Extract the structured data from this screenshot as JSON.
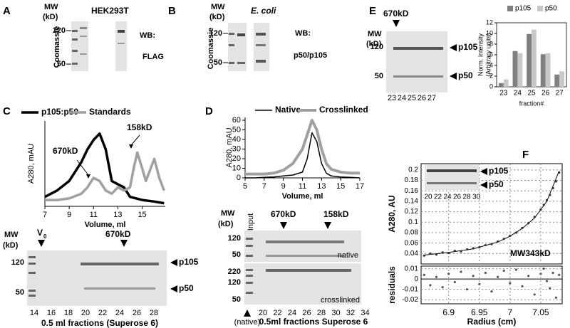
{
  "figure": {
    "A": {
      "label": "A",
      "mw": [
        "MW",
        "(kD)"
      ],
      "cell": "HEK293T",
      "stain": "Coomassie",
      "markers": [
        "120",
        "50"
      ],
      "wb": "WB:",
      "antibody": "FLAG"
    },
    "B": {
      "label": "B",
      "mw": [
        "MW",
        "(kD)"
      ],
      "cell": "E. coli",
      "stain": "Coomassie",
      "markers": [
        "120",
        "50"
      ],
      "wb": "WB:",
      "antibody": "p50/p105"
    },
    "C": {
      "label": "C",
      "gel": {
        "mw": [
          "MW",
          "(kD)"
        ],
        "markers": [
          "120",
          "50"
        ],
        "void": "V",
        "void_sub": "0",
        "size": "670kD",
        "bands": [
          "p105",
          "p50"
        ],
        "fractions": [
          "14",
          "16",
          "18",
          "20",
          "22",
          "24",
          "26",
          "28"
        ],
        "caption": "0.5 ml fractions (Superose 6)"
      }
    },
    "D": {
      "label": "D",
      "gel": {
        "mw": [
          "MW",
          "(kD)"
        ],
        "input": "Input",
        "sizes": [
          "670kD",
          "158kD"
        ],
        "native": {
          "markers": [
            "120",
            "50"
          ],
          "tag": "native"
        },
        "crosslinked": {
          "markers": [
            "220",
            "120",
            "50"
          ],
          "tag": "crosslinked"
        },
        "input_note": "(native)",
        "fractions": [
          "20",
          "22",
          "24",
          "26",
          "28",
          "30",
          "32",
          "34"
        ],
        "caption": "0.5ml fractions Superose 6"
      }
    },
    "E": {
      "label": "E",
      "gel": {
        "mw": [
          "MW",
          "(kD)"
        ],
        "size": "670kD",
        "markers": [
          "120",
          "50"
        ],
        "bands": [
          "p105",
          "p50"
        ],
        "lanes": [
          "23",
          "24",
          "25",
          "26",
          "27"
        ]
      }
    },
    "F": {
      "label": "F",
      "gel": {
        "bands": [
          "p105",
          "p50"
        ],
        "lanes": [
          "20",
          "22",
          "24",
          "26",
          "28",
          "30"
        ]
      }
    }
  },
  "chart_data": [
    {
      "type": "line",
      "ylabel": "A280, mAU",
      "xlabel": "Volume, ml",
      "xlim": [
        7,
        16.9
      ],
      "xticks": [
        7,
        9,
        11,
        13,
        15
      ],
      "ylim": [
        0,
        27
      ],
      "annotations": [
        "670kD",
        "158kD"
      ],
      "series": [
        {
          "name": "p105:p50",
          "color": "#000000",
          "x": [
            7,
            8,
            9,
            9.5,
            10,
            10.5,
            11,
            11.5,
            12,
            12.5,
            13,
            13.5,
            14,
            15,
            16,
            16.8
          ],
          "values": [
            3,
            5,
            8,
            11,
            14,
            18,
            21,
            23,
            18,
            8,
            7,
            6,
            3,
            2,
            1.5,
            1
          ]
        },
        {
          "name": "Standards",
          "color": "#a0a0a0",
          "x": [
            7,
            8,
            9,
            10,
            10.5,
            11,
            11.5,
            12,
            12.5,
            13,
            13.5,
            14,
            14.3,
            14.6,
            15,
            15.3,
            15.6,
            16,
            16.4,
            16.8
          ],
          "values": [
            2,
            2,
            2.5,
            4,
            6,
            9,
            8,
            5,
            4,
            6,
            5,
            6,
            12,
            17,
            12,
            8,
            11,
            15,
            9,
            5
          ]
        }
      ]
    },
    {
      "type": "line",
      "ylabel": "A280, mAU",
      "xlabel": "Volume, ml",
      "xlim": [
        5,
        17
      ],
      "xticks": [
        5,
        7,
        9,
        11,
        13,
        15,
        17
      ],
      "ylim": [
        0,
        63
      ],
      "yticks": [
        0,
        10,
        20,
        30,
        40,
        50,
        60
      ],
      "series": [
        {
          "name": "Native",
          "color": "#000000",
          "x": [
            5,
            6,
            7,
            8,
            9,
            10,
            11,
            11.5,
            12,
            12.5,
            13,
            13.5,
            14,
            15,
            16,
            17
          ],
          "values": [
            0,
            0,
            0.5,
            1,
            2,
            3,
            6,
            20,
            47,
            38,
            15,
            5,
            2,
            1,
            0.5,
            0
          ]
        },
        {
          "name": "Crosslinked",
          "color": "#a0a0a0",
          "x": [
            5,
            6,
            7,
            8,
            9,
            10,
            11,
            11.5,
            12,
            12.5,
            13,
            13.5,
            14,
            15,
            16,
            17
          ],
          "values": [
            4,
            4,
            4,
            5,
            8,
            15,
            30,
            45,
            60,
            50,
            30,
            15,
            9,
            6,
            5,
            5
          ]
        }
      ]
    },
    {
      "type": "bar",
      "ylabel": [
        "Norm. intensity",
        "(Arbitrary units)"
      ],
      "xlabel": "fraction#",
      "categories": [
        "23",
        "24",
        "25",
        "26",
        "27"
      ],
      "ylim": [
        0,
        12
      ],
      "yticks": [
        0,
        2,
        4,
        6,
        8,
        10,
        12
      ],
      "series": [
        {
          "name": "p105",
          "color": "#808080",
          "values": [
            0.7,
            6.7,
            9.9,
            6.1,
            2.3
          ]
        },
        {
          "name": "p50",
          "color": "#c8c8c8",
          "values": [
            1.4,
            6.3,
            10.7,
            6.3,
            2.9
          ]
        }
      ]
    },
    {
      "type": "scatter",
      "ylabel": "A280, AU",
      "xlabel": "Radius (cm)",
      "annotation": "MW343kD",
      "grid": true,
      "xlim": [
        6.855,
        7.085
      ],
      "xticks": [
        6.9,
        6.95,
        7,
        7.05
      ],
      "ylim": [
        0.02,
        0.212
      ],
      "yticks": [
        0.04,
        0.06,
        0.08,
        0.1,
        0.12,
        0.14,
        0.16,
        0.18,
        0.2
      ],
      "x": [
        6.86,
        6.87,
        6.88,
        6.89,
        6.9,
        6.91,
        6.92,
        6.93,
        6.94,
        6.95,
        6.96,
        6.97,
        6.98,
        6.99,
        7,
        7.01,
        7.02,
        7.03,
        7.04,
        7.05,
        7.055,
        7.06,
        7.065,
        7.07,
        7.075,
        7.08
      ],
      "values": [
        0.036,
        0.04,
        0.038,
        0.042,
        0.041,
        0.045,
        0.044,
        0.048,
        0.05,
        0.052,
        0.056,
        0.058,
        0.063,
        0.068,
        0.074,
        0.08,
        0.089,
        0.098,
        0.11,
        0.124,
        0.133,
        0.142,
        0.152,
        0.165,
        0.178,
        0.195
      ],
      "fit": {
        "x": [
          6.86,
          6.9,
          6.94,
          6.98,
          7,
          7.02,
          7.04,
          7.06,
          7.08
        ],
        "values": [
          0.037,
          0.042,
          0.049,
          0.062,
          0.073,
          0.088,
          0.108,
          0.14,
          0.198
        ]
      },
      "residuals": {
        "label": "residuals",
        "ylim": [
          -0.024,
          0.0125
        ],
        "yticks": [
          0.01,
          0,
          -0.01,
          -0.02
        ],
        "values": [
          0.004,
          -0.006,
          0.002,
          -0.008,
          0.005,
          -0.003,
          0.007,
          -0.01,
          0.003,
          -0.005,
          0.006,
          -0.012,
          0.002,
          0.008,
          -0.004,
          0.009,
          -0.007,
          0.003,
          -0.015,
          0.005,
          0.01,
          -0.002,
          -0.009,
          0.006,
          -0.018,
          0.004
        ]
      }
    }
  ]
}
